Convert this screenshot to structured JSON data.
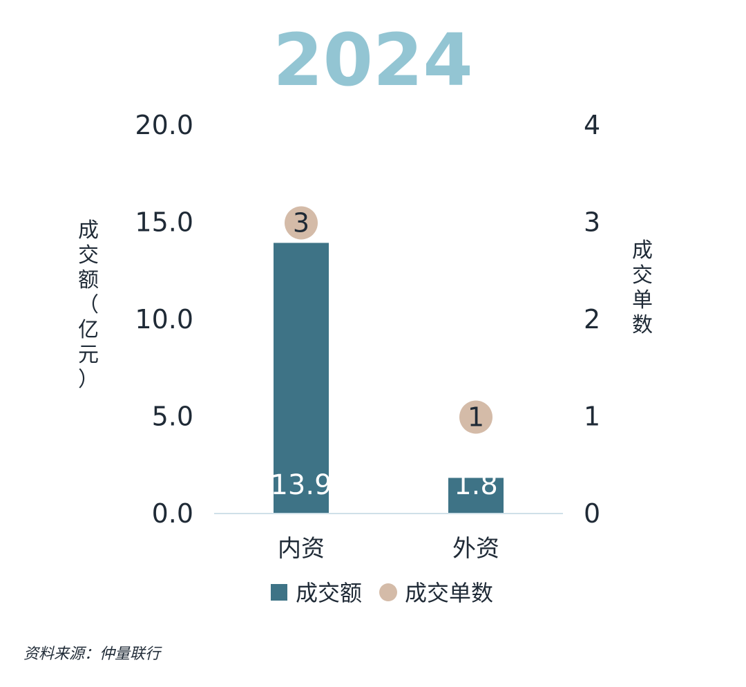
{
  "chart_data": {
    "type": "bar",
    "title": "2024",
    "categories": [
      "内资",
      "外资"
    ],
    "series": [
      {
        "name": "成交额",
        "axis": "left",
        "kind": "bar",
        "values": [
          13.9,
          1.8
        ],
        "color": "#3e7386"
      },
      {
        "name": "成交单数",
        "axis": "right",
        "kind": "dot",
        "values": [
          3,
          1
        ],
        "color": "#d4bba8"
      }
    ],
    "ylabel": "成交额（亿元）",
    "y2label": "成交单数",
    "ylim": [
      0,
      20
    ],
    "y2lim": [
      0,
      4
    ],
    "yticks": [
      "0.0",
      "5.0",
      "10.0",
      "15.0",
      "20.0"
    ],
    "y2ticks": [
      "0",
      "1",
      "2",
      "3",
      "4"
    ],
    "grid": false,
    "legend_position": "bottom",
    "baseline_color": "#cfe0e8"
  },
  "source": "资料来源：仲量联行"
}
